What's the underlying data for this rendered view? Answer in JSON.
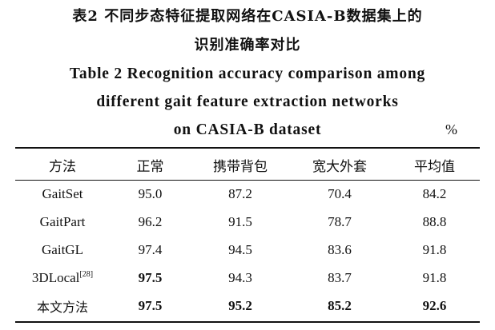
{
  "caption": {
    "cn_line1": "表2   不同步态特征提取网络在CASIA-B数据集上的",
    "cn_line2": "识别准确率对比",
    "en_line1": "Table 2   Recognition accuracy comparison among",
    "en_line2": "different gait feature extraction networks",
    "en_line3": "on CASIA-B dataset",
    "unit": "%"
  },
  "table": {
    "headers": [
      "方法",
      "正常",
      "携带背包",
      "宽大外套",
      "平均值"
    ],
    "rows": [
      {
        "method": "GaitSet",
        "ref": "",
        "cells": [
          "95.0",
          "87.2",
          "70.4",
          "84.2"
        ],
        "bold": [
          false,
          false,
          false,
          false
        ]
      },
      {
        "method": "GaitPart",
        "ref": "",
        "cells": [
          "96.2",
          "91.5",
          "78.7",
          "88.8"
        ],
        "bold": [
          false,
          false,
          false,
          false
        ]
      },
      {
        "method": "GaitGL",
        "ref": "",
        "cells": [
          "97.4",
          "94.5",
          "83.6",
          "91.8"
        ],
        "bold": [
          false,
          false,
          false,
          false
        ]
      },
      {
        "method": "3DLocal",
        "ref": "[28]",
        "cells": [
          "97.5",
          "94.3",
          "83.7",
          "91.8"
        ],
        "bold": [
          true,
          false,
          false,
          false
        ]
      },
      {
        "method": "本文方法",
        "ref": "",
        "cells": [
          "97.5",
          "95.2",
          "85.2",
          "92.6"
        ],
        "bold": [
          true,
          true,
          true,
          true
        ]
      }
    ]
  }
}
